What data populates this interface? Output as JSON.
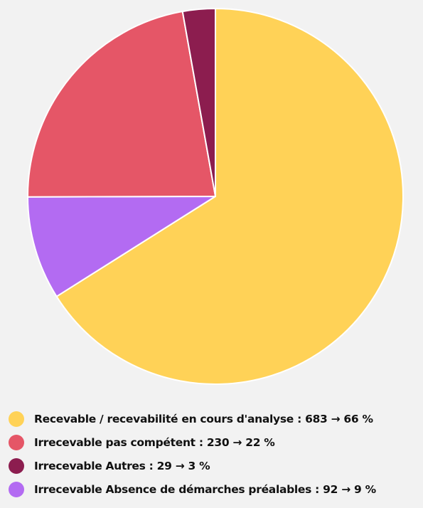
{
  "chart_data": {
    "type": "pie",
    "title": "",
    "slices": [
      {
        "label": "Recevable / recevabilité en cours d'analyse : 683 → 66 %",
        "category": "Recevable / recevabilité en cours d'analyse",
        "value": 683,
        "percent": 66,
        "color": "#ffd257"
      },
      {
        "label": "Irrecevable pas compétent : 230 → 22 %",
        "category": "Irrecevable pas compétent",
        "value": 230,
        "percent": 22,
        "color": "#e55667"
      },
      {
        "label": "Irrecevable Autres : 29 → 3 %",
        "category": "Irrecevable Autres",
        "value": 29,
        "percent": 3,
        "color": "#8c1d4f"
      },
      {
        "label": "Irrecevable Absence de démarches préalables : 92 → 9 %",
        "category": "Irrecevable Absence de démarches préalables",
        "value": 92,
        "percent": 9,
        "color": "#b36bf2"
      }
    ],
    "draw_order": [
      "Recevable / recevabilité en cours d'analyse : 683 → 66 %",
      "Irrecevable Absence de démarches préalables : 92 → 9 %",
      "Irrecevable pas compétent : 230 → 22 %",
      "Irrecevable Autres : 29 → 3 %"
    ],
    "legend_position": "bottom-left",
    "slice_border_color": "#ffffff"
  }
}
